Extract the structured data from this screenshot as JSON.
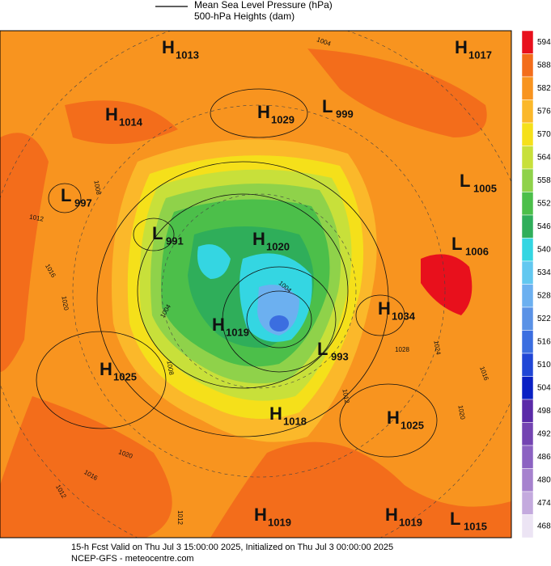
{
  "header": {
    "legend_line": "Mean Sea Level Pressure (hPa)",
    "legend_fill": "500-hPa Heights (dam)"
  },
  "colorbar": {
    "values": [
      594,
      588,
      582,
      576,
      570,
      564,
      558,
      552,
      546,
      540,
      534,
      528,
      522,
      516,
      510,
      504,
      498,
      492,
      486,
      480,
      474,
      468
    ],
    "colors": [
      "#e8101c",
      "#f36d1b",
      "#f8941f",
      "#fbb82a",
      "#f5e01a",
      "#c8e03a",
      "#8fd24a",
      "#4cbf4a",
      "#2fae5a",
      "#34d6e2",
      "#62c8f0",
      "#6cb0f0",
      "#5a92e6",
      "#3b6ee0",
      "#2046d6",
      "#0a20c4",
      "#5a2aa8",
      "#7444b2",
      "#8c62c2",
      "#a682ce",
      "#c4aade",
      "#ece4f4"
    ]
  },
  "centers": [
    {
      "type": "H",
      "value": 1013
    },
    {
      "type": "H",
      "value": 1017
    },
    {
      "type": "H",
      "value": 1014
    },
    {
      "type": "H",
      "value": 1029
    },
    {
      "type": "L",
      "value": 999
    },
    {
      "type": "L",
      "value": 997
    },
    {
      "type": "L",
      "value": 1005
    },
    {
      "type": "L",
      "value": 991
    },
    {
      "type": "H",
      "value": 1020
    },
    {
      "type": "L",
      "value": 1006
    },
    {
      "type": "H",
      "value": 1034
    },
    {
      "type": "H",
      "value": 1019
    },
    {
      "type": "L",
      "value": 993
    },
    {
      "type": "H",
      "value": 1025
    },
    {
      "type": "H",
      "value": 1018
    },
    {
      "type": "H",
      "value": 1025
    },
    {
      "type": "H",
      "value": 1019
    },
    {
      "type": "H",
      "value": 1019
    },
    {
      "type": "L",
      "value": 1015
    }
  ],
  "isobar_labels": [
    1004,
    1012,
    1016,
    1020,
    1008,
    1004,
    1004,
    1008,
    1028,
    1024,
    1016,
    1020,
    1012,
    1020,
    1016,
    1012,
    1012
  ],
  "footer": {
    "line1": "15-h Fcst Valid on Thu Jul  3 15:00:00 2025, Initialized on Thu Jul  3 00:00:00 2025",
    "line2": "NCEP-GFS  - meteocentre.com"
  }
}
